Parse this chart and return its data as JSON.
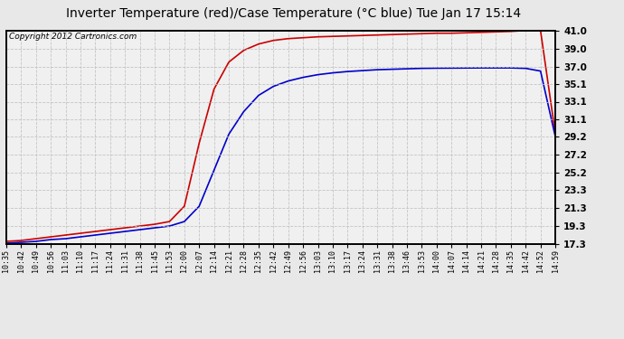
{
  "title": "Inverter Temperature (red)/Case Temperature (°C blue) Tue Jan 17 15:14",
  "copyright": "Copyright 2012 Cartronics.com",
  "yticks": [
    17.3,
    19.3,
    21.3,
    23.3,
    25.2,
    27.2,
    29.2,
    31.1,
    33.1,
    35.1,
    37.0,
    39.0,
    41.0
  ],
  "ylim": [
    17.3,
    41.0
  ],
  "xtick_labels": [
    "10:35",
    "10:42",
    "10:49",
    "10:56",
    "11:03",
    "11:10",
    "11:17",
    "11:24",
    "11:31",
    "11:38",
    "11:45",
    "11:53",
    "12:00",
    "12:07",
    "12:14",
    "12:21",
    "12:28",
    "12:35",
    "12:42",
    "12:49",
    "12:56",
    "13:03",
    "13:10",
    "13:17",
    "13:24",
    "13:31",
    "13:38",
    "13:46",
    "13:53",
    "14:00",
    "14:07",
    "14:14",
    "14:21",
    "14:28",
    "14:35",
    "14:42",
    "14:52",
    "14:59"
  ],
  "red_y": [
    17.6,
    17.7,
    17.9,
    18.1,
    18.3,
    18.5,
    18.7,
    18.9,
    19.1,
    19.3,
    19.5,
    19.8,
    21.5,
    28.5,
    34.5,
    37.5,
    38.8,
    39.5,
    39.9,
    40.1,
    40.2,
    40.3,
    40.35,
    40.4,
    40.45,
    40.5,
    40.55,
    40.6,
    40.65,
    40.7,
    40.7,
    40.75,
    40.8,
    40.85,
    40.9,
    41.0,
    41.0,
    29.5
  ],
  "blue_y": [
    17.4,
    17.5,
    17.6,
    17.8,
    17.9,
    18.1,
    18.3,
    18.5,
    18.7,
    18.9,
    19.1,
    19.3,
    19.8,
    21.5,
    25.5,
    29.5,
    32.0,
    33.8,
    34.8,
    35.4,
    35.8,
    36.1,
    36.3,
    36.45,
    36.55,
    36.65,
    36.7,
    36.75,
    36.8,
    36.82,
    36.83,
    36.84,
    36.85,
    36.85,
    36.85,
    36.8,
    36.5,
    29.2
  ],
  "background_color": "#e8e8e8",
  "plot_bg_color": "#f0f0f0",
  "grid_color": "#c0c0c0",
  "red_color": "#cc0000",
  "blue_color": "#0000cc",
  "title_fontsize": 10,
  "copyright_fontsize": 6.5
}
